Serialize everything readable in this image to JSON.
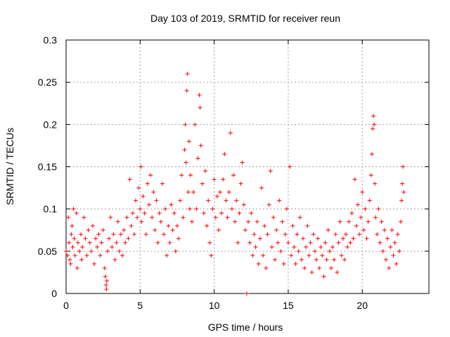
{
  "chart_data": {
    "type": "scatter",
    "title": "Day 103 of 2019, SRMTID for receiver reun",
    "xlabel": "GPS time / hours",
    "ylabel": "SRMTID / TECUs",
    "xlim": [
      0,
      24.5
    ],
    "ylim": [
      0,
      0.3
    ],
    "xticks": [
      0,
      5,
      10,
      15,
      20
    ],
    "xtick_labels": [
      "0",
      "5",
      "10",
      "15",
      "20"
    ],
    "yticks": [
      0,
      0.05,
      0.1,
      0.15,
      0.2,
      0.25,
      0.3
    ],
    "ytick_labels": [
      "0",
      "0.05",
      "0.1",
      "0.15",
      "0.2",
      "0.25",
      "0.3"
    ],
    "grid": true,
    "marker": "+",
    "color": "#ff0000",
    "series": [
      {
        "name": "reun",
        "points": [
          [
            0.0,
            0.05
          ],
          [
            0.1,
            0.045
          ],
          [
            0.15,
            0.09
          ],
          [
            0.2,
            0.06
          ],
          [
            0.25,
            0.04
          ],
          [
            0.3,
            0.035
          ],
          [
            0.35,
            0.07
          ],
          [
            0.4,
            0.08
          ],
          [
            0.45,
            0.055
          ],
          [
            0.5,
            0.1
          ],
          [
            0.55,
            0.065
          ],
          [
            0.6,
            0.045
          ],
          [
            0.7,
            0.095
          ],
          [
            0.75,
            0.03
          ],
          [
            0.8,
            0.06
          ],
          [
            0.9,
            0.05
          ],
          [
            1.0,
            0.07
          ],
          [
            1.05,
            0.04
          ],
          [
            1.1,
            0.055
          ],
          [
            1.2,
            0.09
          ],
          [
            1.3,
            0.065
          ],
          [
            1.4,
            0.045
          ],
          [
            1.5,
            0.075
          ],
          [
            1.6,
            0.06
          ],
          [
            1.7,
            0.05
          ],
          [
            1.8,
            0.08
          ],
          [
            1.9,
            0.035
          ],
          [
            2.0,
            0.065
          ],
          [
            2.1,
            0.055
          ],
          [
            2.2,
            0.07
          ],
          [
            2.3,
            0.045
          ],
          [
            2.4,
            0.06
          ],
          [
            2.5,
            0.075
          ],
          [
            2.6,
            0.03
          ],
          [
            2.65,
            0.02
          ],
          [
            2.7,
            0.01
          ],
          [
            2.72,
            0.005
          ],
          [
            2.75,
            0.015
          ],
          [
            2.8,
            0.05
          ],
          [
            2.9,
            0.065
          ],
          [
            3.0,
            0.09
          ],
          [
            3.1,
            0.055
          ],
          [
            3.2,
            0.07
          ],
          [
            3.3,
            0.04
          ],
          [
            3.4,
            0.06
          ],
          [
            3.5,
            0.085
          ],
          [
            3.6,
            0.05
          ],
          [
            3.7,
            0.07
          ],
          [
            3.8,
            0.045
          ],
          [
            3.9,
            0.075
          ],
          [
            4.0,
            0.06
          ],
          [
            4.1,
            0.09
          ],
          [
            4.2,
            0.065
          ],
          [
            4.3,
            0.135
          ],
          [
            4.4,
            0.08
          ],
          [
            4.5,
            0.095
          ],
          [
            4.6,
            0.07
          ],
          [
            4.7,
            0.11
          ],
          [
            4.8,
            0.09
          ],
          [
            4.9,
            0.125
          ],
          [
            5.0,
            0.1
          ],
          [
            5.05,
            0.15
          ],
          [
            5.1,
            0.085
          ],
          [
            5.2,
            0.115
          ],
          [
            5.3,
            0.095
          ],
          [
            5.4,
            0.07
          ],
          [
            5.5,
            0.13
          ],
          [
            5.6,
            0.105
          ],
          [
            5.7,
            0.14
          ],
          [
            5.8,
            0.09
          ],
          [
            5.9,
            0.12
          ],
          [
            6.0,
            0.075
          ],
          [
            6.1,
            0.11
          ],
          [
            6.2,
            0.06
          ],
          [
            6.3,
            0.095
          ],
          [
            6.4,
            0.085
          ],
          [
            6.5,
            0.13
          ],
          [
            6.6,
            0.07
          ],
          [
            6.7,
            0.1
          ],
          [
            6.8,
            0.045
          ],
          [
            6.9,
            0.08
          ],
          [
            7.0,
            0.06
          ],
          [
            7.1,
            0.105
          ],
          [
            7.2,
            0.075
          ],
          [
            7.3,
            0.095
          ],
          [
            7.4,
            0.05
          ],
          [
            7.5,
            0.08
          ],
          [
            7.6,
            0.065
          ],
          [
            7.7,
            0.11
          ],
          [
            7.8,
            0.14
          ],
          [
            7.9,
            0.09
          ],
          [
            8.0,
            0.17
          ],
          [
            8.05,
            0.2
          ],
          [
            8.1,
            0.155
          ],
          [
            8.15,
            0.24
          ],
          [
            8.2,
            0.26
          ],
          [
            8.25,
            0.12
          ],
          [
            8.3,
            0.18
          ],
          [
            8.35,
            0.1
          ],
          [
            8.4,
            0.14
          ],
          [
            8.5,
            0.085
          ],
          [
            8.6,
            0.12
          ],
          [
            8.7,
            0.2
          ],
          [
            8.8,
            0.1
          ],
          [
            8.9,
            0.16
          ],
          [
            9.0,
            0.235
          ],
          [
            9.05,
            0.22
          ],
          [
            9.1,
            0.175
          ],
          [
            9.2,
            0.13
          ],
          [
            9.3,
            0.095
          ],
          [
            9.4,
            0.145
          ],
          [
            9.5,
            0.08
          ],
          [
            9.6,
            0.11
          ],
          [
            9.7,
            0.06
          ],
          [
            9.8,
            0.045
          ],
          [
            9.9,
            0.1
          ],
          [
            10.0,
            0.135
          ],
          [
            10.1,
            0.09
          ],
          [
            10.2,
            0.115
          ],
          [
            10.3,
            0.075
          ],
          [
            10.4,
            0.12
          ],
          [
            10.5,
            0.095
          ],
          [
            10.6,
            0.135
          ],
          [
            10.7,
            0.165
          ],
          [
            10.8,
            0.11
          ],
          [
            10.9,
            0.09
          ],
          [
            11.0,
            0.12
          ],
          [
            11.1,
            0.19
          ],
          [
            11.2,
            0.1
          ],
          [
            11.3,
            0.14
          ],
          [
            11.4,
            0.085
          ],
          [
            11.5,
            0.11
          ],
          [
            11.6,
            0.06
          ],
          [
            11.7,
            0.095
          ],
          [
            11.8,
            0.13
          ],
          [
            11.9,
            0.155
          ],
          [
            12.0,
            0.105
          ],
          [
            12.1,
            0.075
          ],
          [
            12.2,
            0.0
          ],
          [
            12.3,
            0.085
          ],
          [
            12.4,
            0.06
          ],
          [
            12.5,
            0.095
          ],
          [
            12.6,
            0.045
          ],
          [
            12.7,
            0.07
          ],
          [
            12.8,
            0.055
          ],
          [
            12.9,
            0.085
          ],
          [
            13.0,
            0.035
          ],
          [
            13.1,
            0.065
          ],
          [
            13.2,
            0.125
          ],
          [
            13.3,
            0.045
          ],
          [
            13.4,
            0.08
          ],
          [
            13.5,
            0.03
          ],
          [
            13.6,
            0.07
          ],
          [
            13.7,
            0.105
          ],
          [
            13.8,
            0.145
          ],
          [
            13.9,
            0.055
          ],
          [
            14.0,
            0.09
          ],
          [
            14.1,
            0.04
          ],
          [
            14.2,
            0.075
          ],
          [
            14.3,
            0.06
          ],
          [
            14.4,
            0.11
          ],
          [
            14.5,
            0.05
          ],
          [
            14.6,
            0.085
          ],
          [
            14.7,
            0.035
          ],
          [
            14.8,
            0.07
          ],
          [
            14.9,
            0.1
          ],
          [
            15.0,
            0.06
          ],
          [
            15.1,
            0.15
          ],
          [
            15.2,
            0.045
          ],
          [
            15.3,
            0.08
          ],
          [
            15.4,
            0.055
          ],
          [
            15.5,
            0.035
          ],
          [
            15.6,
            0.07
          ],
          [
            15.7,
            0.05
          ],
          [
            15.8,
            0.09
          ],
          [
            15.9,
            0.04
          ],
          [
            16.0,
            0.065
          ],
          [
            16.1,
            0.03
          ],
          [
            16.2,
            0.055
          ],
          [
            16.3,
            0.08
          ],
          [
            16.4,
            0.045
          ],
          [
            16.5,
            0.06
          ],
          [
            16.6,
            0.025
          ],
          [
            16.7,
            0.07
          ],
          [
            16.8,
            0.05
          ],
          [
            16.9,
            0.04
          ],
          [
            17.0,
            0.065
          ],
          [
            17.1,
            0.03
          ],
          [
            17.2,
            0.055
          ],
          [
            17.3,
            0.045
          ],
          [
            17.4,
            0.02
          ],
          [
            17.5,
            0.06
          ],
          [
            17.6,
            0.04
          ],
          [
            17.7,
            0.075
          ],
          [
            17.8,
            0.05
          ],
          [
            17.9,
            0.03
          ],
          [
            18.0,
            0.055
          ],
          [
            18.1,
            0.04
          ],
          [
            18.2,
            0.07
          ],
          [
            18.3,
            0.025
          ],
          [
            18.4,
            0.06
          ],
          [
            18.5,
            0.085
          ],
          [
            18.6,
            0.045
          ],
          [
            18.7,
            0.065
          ],
          [
            18.8,
            0.04
          ],
          [
            18.9,
            0.07
          ],
          [
            19.0,
            0.055
          ],
          [
            19.1,
            0.085
          ],
          [
            19.2,
            0.06
          ],
          [
            19.3,
            0.095
          ],
          [
            19.4,
            0.065
          ],
          [
            19.5,
            0.135
          ],
          [
            19.6,
            0.08
          ],
          [
            19.7,
            0.105
          ],
          [
            19.8,
            0.07
          ],
          [
            19.9,
            0.09
          ],
          [
            20.0,
            0.12
          ],
          [
            20.1,
            0.075
          ],
          [
            20.2,
            0.1
          ],
          [
            20.3,
            0.065
          ],
          [
            20.4,
            0.085
          ],
          [
            20.5,
            0.11
          ],
          [
            20.6,
            0.14
          ],
          [
            20.65,
            0.165
          ],
          [
            20.7,
            0.195
          ],
          [
            20.75,
            0.21
          ],
          [
            20.8,
            0.2
          ],
          [
            20.85,
            0.13
          ],
          [
            20.9,
            0.09
          ],
          [
            21.0,
            0.07
          ],
          [
            21.1,
            0.1
          ],
          [
            21.2,
            0.06
          ],
          [
            21.3,
            0.085
          ],
          [
            21.4,
            0.05
          ],
          [
            21.5,
            0.075
          ],
          [
            21.6,
            0.04
          ],
          [
            21.7,
            0.065
          ],
          [
            21.8,
            0.03
          ],
          [
            21.9,
            0.055
          ],
          [
            22.0,
            0.075
          ],
          [
            22.1,
            0.045
          ],
          [
            22.2,
            0.06
          ],
          [
            22.3,
            0.035
          ],
          [
            22.4,
            0.07
          ],
          [
            22.5,
            0.05
          ],
          [
            22.6,
            0.085
          ],
          [
            22.65,
            0.11
          ],
          [
            22.7,
            0.13
          ],
          [
            22.75,
            0.15
          ],
          [
            22.8,
            0.12
          ]
        ]
      }
    ]
  }
}
